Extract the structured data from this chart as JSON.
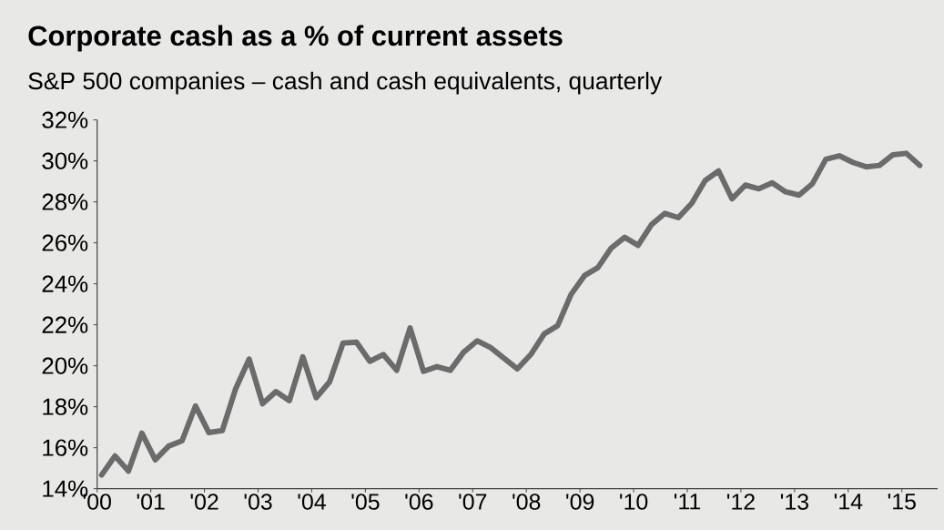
{
  "chart_data": {
    "type": "line",
    "title": "Corporate cash as a % of current assets",
    "subtitle": "S&P 500 companies – cash and cash equivalents, quarterly",
    "x": [
      "2000-02",
      "2000-05",
      "2000-08",
      "2000-11",
      "2001-02",
      "2001-05",
      "2001-08",
      "2001-11",
      "2002-02",
      "2002-05",
      "2002-08",
      "2002-11",
      "2003-02",
      "2003-05",
      "2003-08",
      "2003-11",
      "2004-02",
      "2004-05",
      "2004-08",
      "2004-11",
      "2005-02",
      "2005-05",
      "2005-08",
      "2005-11",
      "2006-02",
      "2006-05",
      "2006-08",
      "2006-11",
      "2007-02",
      "2007-05",
      "2007-08",
      "2007-11",
      "2008-02",
      "2008-05",
      "2008-08",
      "2008-11",
      "2009-02",
      "2009-05",
      "2009-08",
      "2009-11",
      "2010-02",
      "2010-05",
      "2010-08",
      "2010-11",
      "2011-02",
      "2011-05",
      "2011-08",
      "2011-11",
      "2012-02",
      "2012-05",
      "2012-08",
      "2012-11",
      "2013-02",
      "2013-05",
      "2013-08",
      "2013-11",
      "2014-02",
      "2014-05",
      "2014-08",
      "2014-11",
      "2015-02",
      "2015-05"
    ],
    "series": [
      {
        "color": "#6b6b6b",
        "values": [
          14.67,
          15.6,
          14.86,
          16.71,
          15.41,
          16.08,
          16.34,
          18.04,
          16.74,
          16.84,
          18.89,
          20.33,
          18.15,
          18.74,
          18.3,
          20.44,
          18.44,
          19.22,
          21.11,
          21.15,
          20.22,
          20.55,
          19.78,
          21.85,
          19.73,
          19.96,
          19.78,
          20.67,
          21.22,
          20.89,
          20.37,
          19.85,
          20.55,
          21.56,
          21.96,
          23.48,
          24.4,
          24.79,
          25.75,
          26.27,
          25.88,
          26.89,
          27.44,
          27.23,
          27.93,
          29.04,
          29.51,
          28.15,
          28.82,
          28.64,
          28.93,
          28.49,
          28.33,
          28.89,
          30.08,
          30.25,
          29.93,
          29.71,
          29.78,
          30.3,
          30.37,
          29.78
        ]
      }
    ],
    "xlim": [
      "2000",
      "2015-09"
    ],
    "xticks": [
      {
        "value": "2000",
        "label": "'00"
      },
      {
        "value": "2001",
        "label": "'01"
      },
      {
        "value": "2002",
        "label": "'02"
      },
      {
        "value": "2003",
        "label": "'03"
      },
      {
        "value": "2004",
        "label": "'04"
      },
      {
        "value": "2005",
        "label": "'05"
      },
      {
        "value": "2006",
        "label": "'06"
      },
      {
        "value": "2007",
        "label": "'07"
      },
      {
        "value": "2008",
        "label": "'08"
      },
      {
        "value": "2009",
        "label": "'09"
      },
      {
        "value": "2010",
        "label": "'10"
      },
      {
        "value": "2011",
        "label": "'11"
      },
      {
        "value": "2012",
        "label": "'12"
      },
      {
        "value": "2013",
        "label": "'13"
      },
      {
        "value": "2014",
        "label": "'14"
      },
      {
        "value": "2015",
        "label": "'15"
      }
    ],
    "ylim": [
      14,
      32
    ],
    "yticks": [
      {
        "value": 14,
        "label": "14%"
      },
      {
        "value": 16,
        "label": "16%"
      },
      {
        "value": 18,
        "label": "18%"
      },
      {
        "value": 20,
        "label": "20%"
      },
      {
        "value": 22,
        "label": "22%"
      },
      {
        "value": 24,
        "label": "24%"
      },
      {
        "value": 26,
        "label": "26%"
      },
      {
        "value": 28,
        "label": "28%"
      },
      {
        "value": 30,
        "label": "30%"
      },
      {
        "value": 32,
        "label": "32%"
      }
    ],
    "line_style": "solid"
  }
}
